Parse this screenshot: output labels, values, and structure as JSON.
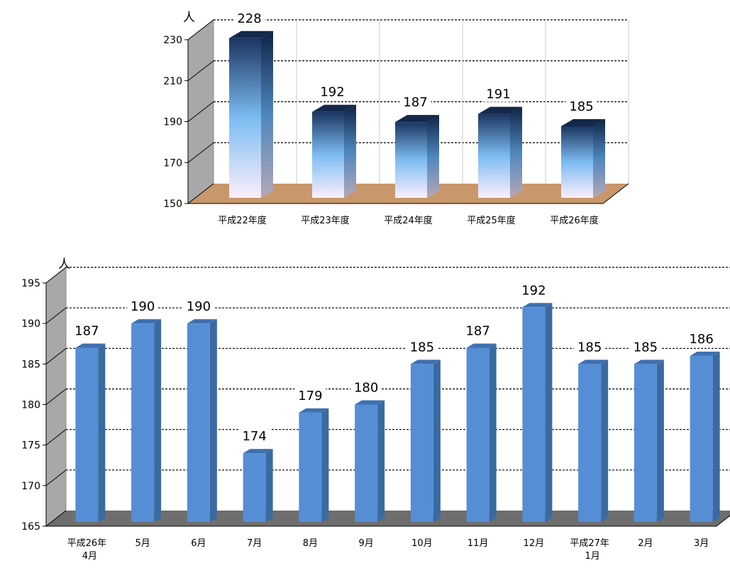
{
  "chart_data": [
    {
      "type": "bar",
      "unit": "人",
      "categories": [
        "平成22年度",
        "平成23年度",
        "平成24年度",
        "平成25年度",
        "平成26年度"
      ],
      "values": [
        228,
        192,
        187,
        191,
        185
      ],
      "ylim": [
        150,
        230
      ],
      "yticks": [
        150,
        170,
        190,
        210,
        230
      ],
      "grid": true,
      "colors": {
        "bar_top": "#1b3560",
        "bar_mid": "#7cbcf2",
        "bar_bottom": "#fbeffb",
        "floor": "#c8976b",
        "wall": "#a8a8a8"
      }
    },
    {
      "type": "bar",
      "unit": "人",
      "categories": [
        [
          "平成26年",
          "4月"
        ],
        [
          "5月"
        ],
        [
          "6月"
        ],
        [
          "7月"
        ],
        [
          "8月"
        ],
        [
          "9月"
        ],
        [
          "10月"
        ],
        [
          "11月"
        ],
        [
          "12月"
        ],
        [
          "平成27年",
          "1月"
        ],
        [
          "2月"
        ],
        [
          "3月"
        ]
      ],
      "values": [
        187,
        190,
        190,
        174,
        179,
        180,
        185,
        187,
        192,
        185,
        185,
        186
      ],
      "ylim": [
        165,
        195
      ],
      "yticks": [
        165,
        170,
        175,
        180,
        185,
        190,
        195
      ],
      "grid": true,
      "colors": {
        "bar_front": "#558ed5",
        "bar_side": "#3b6aa3",
        "bar_top": "#3e70b0",
        "floor": "#6e6e6e",
        "wall": "#a8a8a8"
      }
    }
  ]
}
